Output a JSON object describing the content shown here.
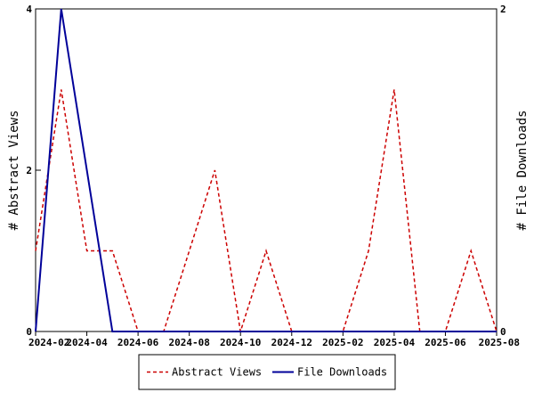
{
  "chart_data": {
    "type": "line",
    "x": [
      "2024-02",
      "2024-03",
      "2024-04",
      "2024-05",
      "2024-06",
      "2024-07",
      "2024-08",
      "2024-09",
      "2024-10",
      "2024-11",
      "2024-12",
      "2025-01",
      "2025-02",
      "2025-03",
      "2025-04",
      "2025-05",
      "2025-06",
      "2025-07",
      "2025-08"
    ],
    "x_tick_labels": [
      "2024-02",
      "2024-04",
      "2024-06",
      "2024-08",
      "2024-10",
      "2024-12",
      "2025-02",
      "2025-04",
      "2025-06",
      "2025-08"
    ],
    "series": [
      {
        "name": "Abstract Views",
        "axis": "left",
        "color": "#cc0000",
        "style": "dashed",
        "values": [
          1,
          3,
          1,
          1,
          0,
          0,
          1,
          2,
          0,
          1,
          0,
          0,
          0,
          1,
          3,
          0,
          0,
          1,
          0
        ]
      },
      {
        "name": "File Downloads",
        "axis": "right",
        "color": "#000099",
        "style": "solid",
        "values": [
          0,
          2,
          1,
          0,
          0,
          0,
          0,
          0,
          0,
          0,
          0,
          0,
          0,
          0,
          0,
          0,
          0,
          0,
          0
        ]
      }
    ],
    "ylabel": "# Abstract Views",
    "ylabel_right": "# File Downloads",
    "ylim": [
      0,
      4
    ],
    "ylim_right": [
      0,
      2
    ],
    "y_tick_labels": [
      "0",
      "2",
      "4"
    ],
    "y_right_tick_labels": [
      "0",
      "2"
    ],
    "grid": false,
    "legend_position": "bottom"
  }
}
